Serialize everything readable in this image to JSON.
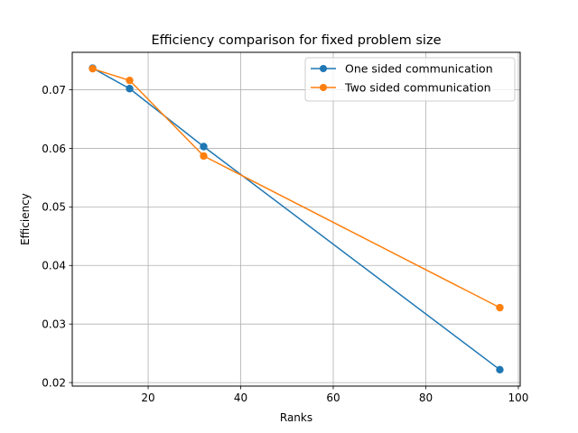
{
  "chart_data": {
    "type": "line",
    "title": "Efficiency comparison for fixed problem size",
    "xlabel": "Ranks",
    "ylabel": "Efficiency",
    "xlim": [
      3.6,
      100.4
    ],
    "ylim": [
      0.0194,
      0.0764
    ],
    "xticks": [
      20,
      40,
      60,
      80,
      100
    ],
    "yticks": [
      0.02,
      0.03,
      0.04,
      0.05,
      0.06,
      0.07
    ],
    "xtick_labels": [
      "20",
      "40",
      "60",
      "80",
      "100"
    ],
    "ytick_labels": [
      "0.02",
      "0.03",
      "0.04",
      "0.05",
      "0.06",
      "0.07"
    ],
    "grid": true,
    "legend_position": "top-right",
    "series": [
      {
        "name": "One sided communication",
        "color": "#1f77b4",
        "marker": "circle",
        "x": [
          8,
          16,
          32,
          96
        ],
        "y": [
          0.0737,
          0.0702,
          0.0603,
          0.0222
        ]
      },
      {
        "name": "Two sided communication",
        "color": "#ff7f0e",
        "marker": "circle",
        "x": [
          8,
          16,
          32,
          96
        ],
        "y": [
          0.0736,
          0.0716,
          0.0587,
          0.0328
        ]
      }
    ]
  }
}
